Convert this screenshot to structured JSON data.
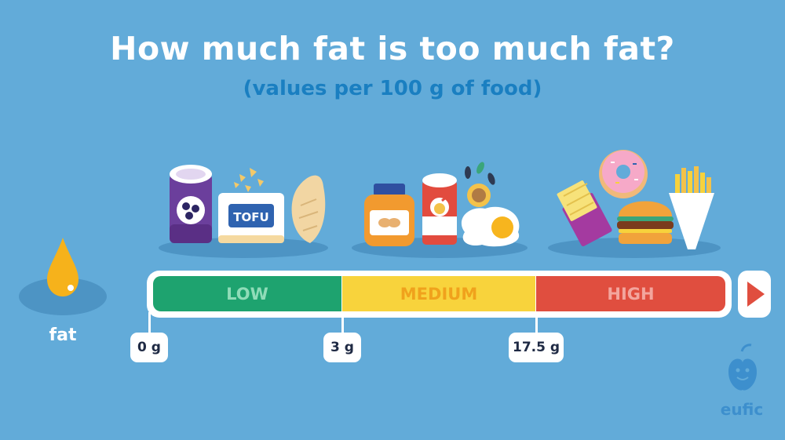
{
  "header": {
    "title": "How much fat is too much fat?",
    "subtitle": "(values per 100 g of food)"
  },
  "scale": {
    "segments": [
      {
        "label": "LOW",
        "fill": "#1ea36f",
        "text_color": "#8fdcb8"
      },
      {
        "label": "MEDIUM",
        "fill": "#f8d33c",
        "text_color": "#f0a21c"
      },
      {
        "label": "HIGH",
        "fill": "#e04e3f",
        "text_color": "#f3a59d"
      }
    ],
    "thresholds": [
      "0 g",
      "3 g",
      "17.5 g"
    ]
  },
  "nutrient": {
    "label": "fat"
  },
  "foods": {
    "low_group": {
      "tofu_label": "TOFU"
    },
    "groups": [
      {
        "level": "low",
        "items": [
          "beans-can",
          "tofu",
          "chicken-breast"
        ]
      },
      {
        "level": "medium",
        "items": [
          "peanut-butter-jar",
          "fish-can",
          "walnut",
          "seeds",
          "fried-egg"
        ]
      },
      {
        "level": "high",
        "items": [
          "chocolate",
          "donut",
          "burger",
          "fries"
        ]
      }
    ]
  },
  "brand": {
    "name": "eufic",
    "icon": "apple-face-icon",
    "color": "#3d8fcd"
  },
  "colors": {
    "background": "#62abd9",
    "title": "#ffffff",
    "subtitle": "#1a7fc1",
    "fat_drop": "#f6b21b",
    "arrow": "#e04e3f"
  }
}
